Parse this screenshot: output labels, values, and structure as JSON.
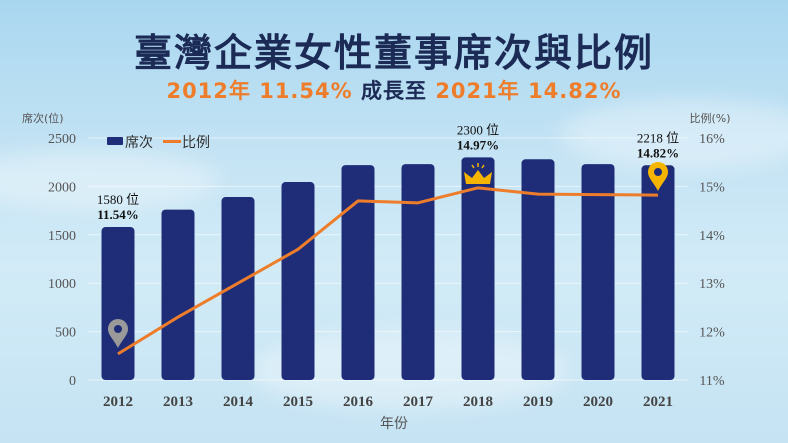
{
  "header": {
    "title": "臺灣企業女性董事席次與比例",
    "subtitle_start": "2012年 11.54%",
    "subtitle_mid": " 成長至 ",
    "subtitle_end": "2021年 14.82%"
  },
  "colors": {
    "bar": "#1f2d78",
    "line": "#ee7d2b",
    "title": "#1c2b55",
    "accent": "#ee7d2b",
    "pin_gray": "#9a9a9a",
    "pin_gold": "#f5b400"
  },
  "chart_data": {
    "type": "bar",
    "title": "臺灣企業女性董事席次與比例",
    "subtitle": "2012年 11.54% 成長至 2021年 14.82%",
    "xlabel": "年份",
    "ylabel": "席次(位)",
    "y2label": "比例(%)",
    "categories": [
      "2012",
      "2013",
      "2014",
      "2015",
      "2016",
      "2017",
      "2018",
      "2019",
      "2020",
      "2021"
    ],
    "series": [
      {
        "name": "席次",
        "type": "bar",
        "axis": "left",
        "values": [
          1580,
          1760,
          1890,
          2045,
          2220,
          2230,
          2300,
          2280,
          2230,
          2218
        ]
      },
      {
        "name": "比例",
        "type": "line",
        "axis": "right",
        "values": [
          11.54,
          12.3,
          13.0,
          13.7,
          14.7,
          14.66,
          14.97,
          14.84,
          14.83,
          14.82
        ]
      }
    ],
    "ylim": [
      0,
      2500
    ],
    "yticks": [
      "0",
      "500",
      "1000",
      "1500",
      "2000",
      "2500"
    ],
    "y2lim": [
      11,
      16
    ],
    "y2ticks": [
      "11%",
      "12%",
      "13%",
      "14%",
      "15%",
      "16%"
    ],
    "legend": [
      "席次",
      "比例"
    ],
    "legend_position": "top-left",
    "grid": true,
    "annotations": [
      {
        "year": "2012",
        "line1": "1580 位",
        "line2": "11.54%",
        "icon": "gray-map-pin"
      },
      {
        "year": "2018",
        "line1": "2300 位",
        "line2": "14.97%",
        "icon": "crown"
      },
      {
        "year": "2021",
        "line1": "2218 位",
        "line2": "14.82%",
        "icon": "gold-map-pin"
      }
    ]
  }
}
